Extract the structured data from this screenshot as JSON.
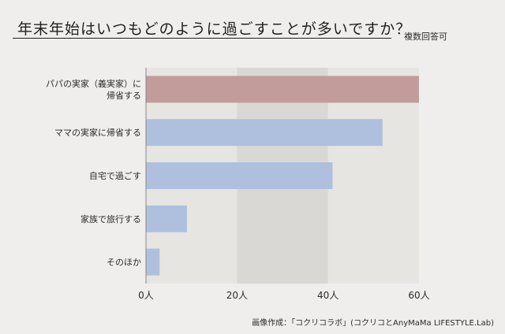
{
  "header": {
    "title": "年末年始はいつもどのように過ごすことが多いですか？",
    "note": "複数回答可"
  },
  "footer": {
    "credit": "画像作成：「コクリコラボ」(コクリコとAnyMaMa LIFESTYLE.Lab)"
  },
  "colors": {
    "highlight_bar": "#c19c9a",
    "bar": "#aec0dd",
    "band_light": "#e6e5e2",
    "band_dark": "#d9d8d5"
  },
  "chart_data": {
    "type": "bar",
    "orientation": "horizontal",
    "categories": [
      [
        "パパの実家（義実家）に",
        "帰省する"
      ],
      [
        "ママの実家に帰省する"
      ],
      [
        "自宅で過ごす"
      ],
      [
        "家族で旅行する"
      ],
      [
        "そのほか"
      ]
    ],
    "values": [
      60,
      52,
      41,
      9,
      3
    ],
    "highlight_index": 0,
    "xlim": [
      0,
      60
    ],
    "xticks": [
      0,
      20,
      40,
      60
    ],
    "tick_labels": [
      "0人",
      "20人",
      "40人",
      "60人"
    ],
    "grid": false
  }
}
